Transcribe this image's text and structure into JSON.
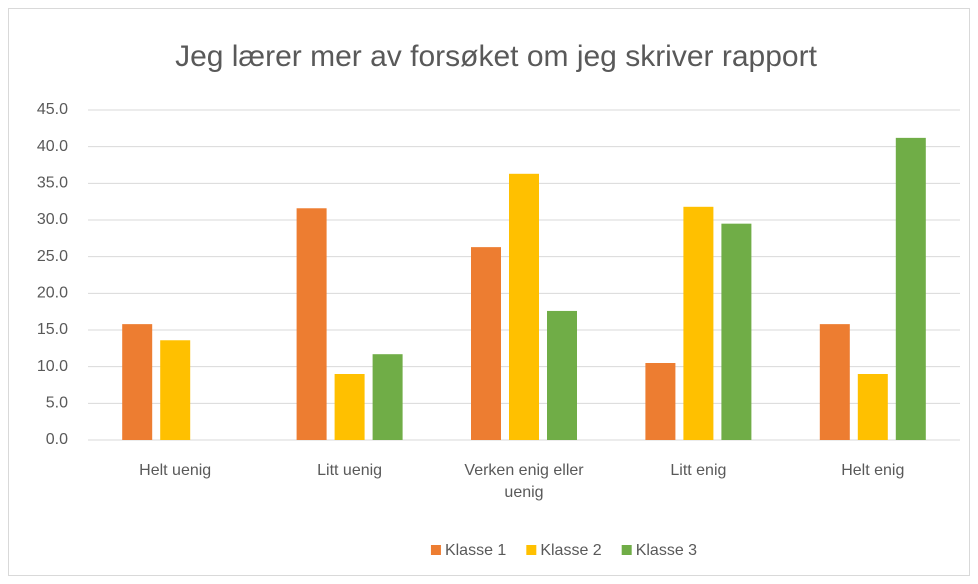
{
  "chart_data": {
    "type": "bar",
    "title": "Jeg lærer mer av forsøket om jeg skriver rapport",
    "categories": [
      "Helt uenig",
      "Litt uenig",
      "Verken enig eller uenig",
      "Litt enig",
      "Helt enig"
    ],
    "series": [
      {
        "name": "Klasse 1",
        "color": "#ed7d31",
        "values": [
          15.8,
          31.6,
          26.3,
          10.5,
          15.8
        ]
      },
      {
        "name": "Klasse 2",
        "color": "#ffc000",
        "values": [
          13.6,
          9.0,
          36.3,
          31.8,
          9.0
        ]
      },
      {
        "name": "Klasse 3",
        "color": "#70ad47",
        "values": [
          0,
          11.7,
          17.6,
          29.5,
          41.2
        ]
      }
    ],
    "ylim": [
      0,
      45
    ],
    "yticks": [
      {
        "value": 0,
        "label": "0.0"
      },
      {
        "value": 5,
        "label": "5.0"
      },
      {
        "value": 10,
        "label": "10.0"
      },
      {
        "value": 15,
        "label": "15.0"
      },
      {
        "value": 20,
        "label": "20.0"
      },
      {
        "value": 25,
        "label": "25.0"
      },
      {
        "value": 30,
        "label": "30.0"
      },
      {
        "value": 35,
        "label": "35.0"
      },
      {
        "value": 40,
        "label": "40.0"
      },
      {
        "value": 45,
        "label": "45.0"
      }
    ],
    "grid": true,
    "legend": "bottom"
  }
}
